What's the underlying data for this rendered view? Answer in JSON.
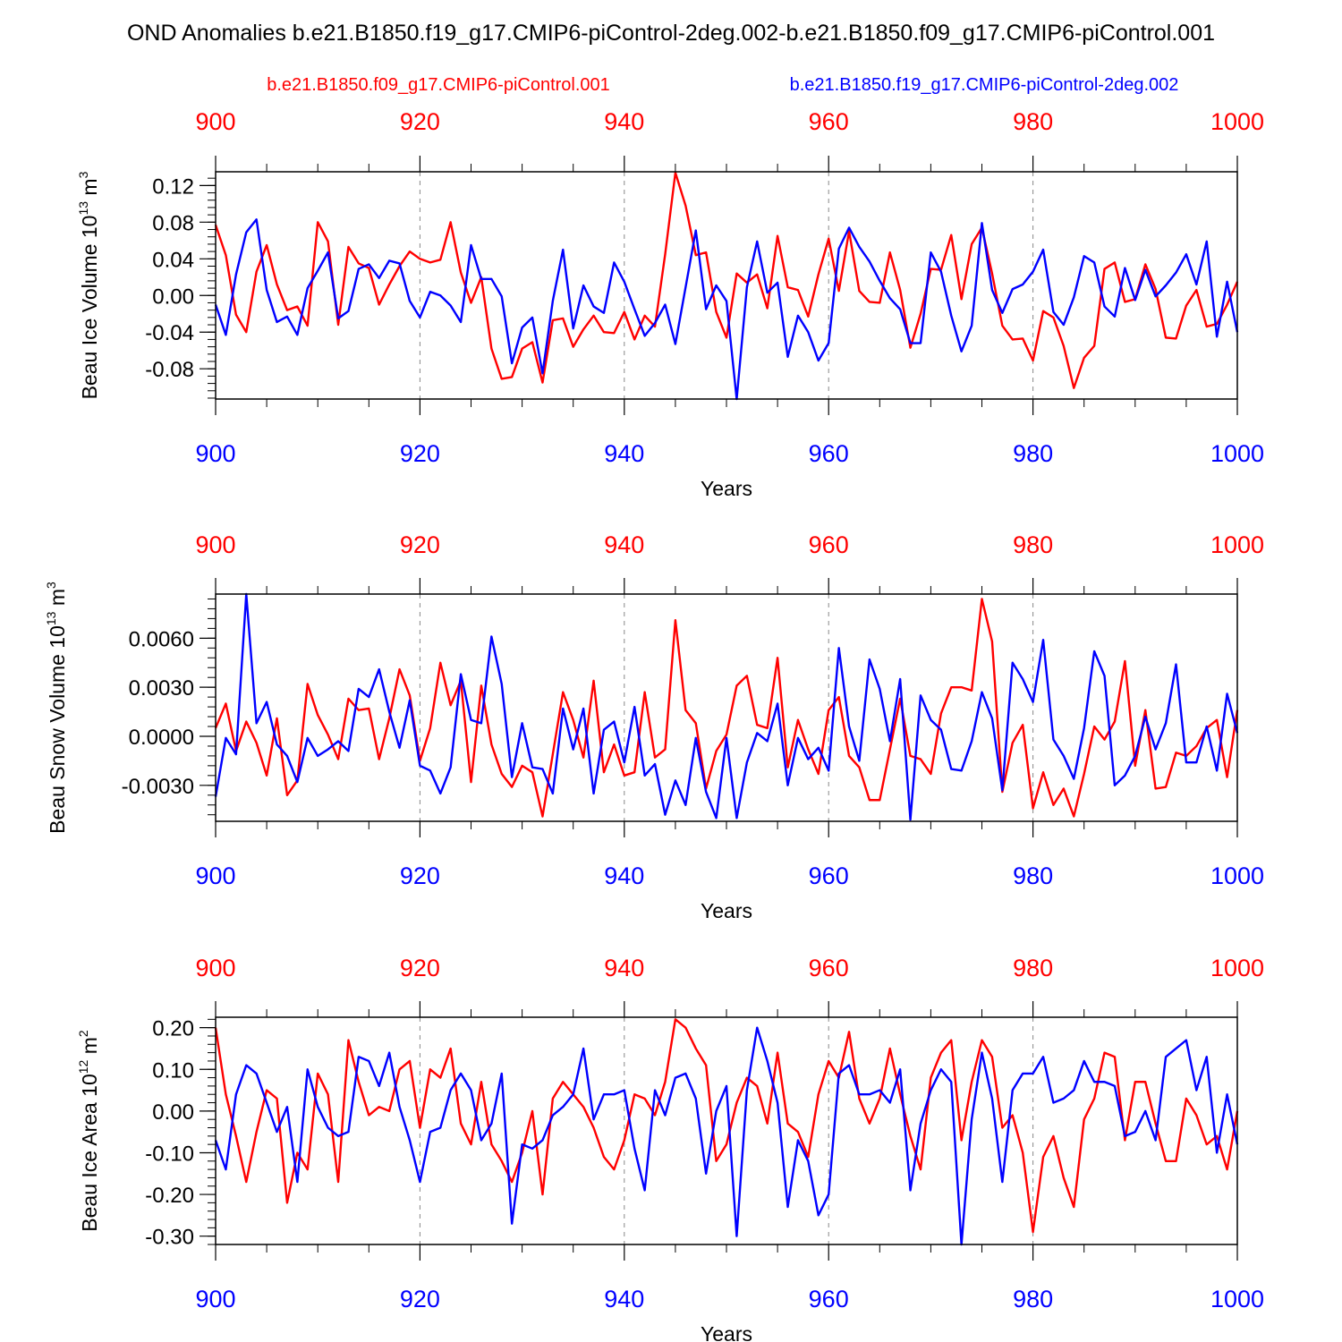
{
  "title": "OND Anomalies b.e21.B1850.f19_g17.CMIP6-piControl-2deg.002-b.e21.B1850.f09_g17.CMIP6-piControl.001",
  "legend": [
    {
      "label": "b.e21.B1850.f09_g17.CMIP6-piControl.001",
      "color": "#ff0000"
    },
    {
      "label": "b.e21.B1850.f19_g17.CMIP6-piControl-2deg.002",
      "color": "#0000ff"
    }
  ],
  "colors": {
    "red": "#ff0000",
    "blue": "#0000ff",
    "axis": "#000000",
    "grid": "#888888"
  },
  "chart_data": [
    {
      "type": "line",
      "ylabel": "Beau Ice Volume 10",
      "ylabel_exp": "13",
      "ylabel_unit": " m",
      "ylabel_unit_exp": "3",
      "xlabel": "Years",
      "xlim": [
        900,
        1000
      ],
      "ylim": [
        -0.113,
        0.135
      ],
      "yticks": [
        -0.08,
        -0.04,
        0.0,
        0.04,
        0.08,
        0.12
      ],
      "ytick_labels": [
        "-0.08",
        "-0.04",
        "0.00",
        "0.04",
        "0.08",
        "0.12"
      ],
      "yminor_step": 0.008,
      "xticks": [
        900,
        920,
        940,
        960,
        980,
        1000
      ],
      "xtick_labels": [
        "900",
        "920",
        "940",
        "960",
        "980",
        "1000"
      ],
      "grid_x": [
        920,
        940,
        960,
        980
      ],
      "series": [
        {
          "name": "b.e21.B1850.f09_g17.CMIP6-piControl.001",
          "color": "#ff0000",
          "values": [
            0.077,
            0.044,
            -0.021,
            -0.04,
            0.026,
            0.055,
            0.012,
            -0.016,
            -0.012,
            -0.033,
            0.08,
            0.059,
            -0.032,
            0.053,
            0.035,
            0.03,
            -0.01,
            0.012,
            0.032,
            0.048,
            0.04,
            0.036,
            0.039,
            0.08,
            0.025,
            -0.008,
            0.02,
            -0.058,
            -0.091,
            -0.089,
            -0.058,
            -0.051,
            -0.095,
            -0.027,
            -0.025,
            -0.056,
            -0.037,
            -0.022,
            -0.04,
            -0.041,
            -0.018,
            -0.048,
            -0.022,
            -0.034,
            0.045,
            0.134,
            0.098,
            0.044,
            0.047,
            -0.018,
            -0.046,
            0.024,
            0.014,
            0.023,
            -0.014,
            0.065,
            0.009,
            0.006,
            -0.023,
            0.023,
            0.062,
            0.005,
            0.07,
            0.005,
            -0.007,
            -0.008,
            0.047,
            0.006,
            -0.057,
            -0.02,
            0.029,
            0.028,
            0.066,
            -0.004,
            0.056,
            0.074,
            0.024,
            -0.033,
            -0.048,
            -0.047,
            -0.071,
            -0.017,
            -0.024,
            -0.055,
            -0.101,
            -0.068,
            -0.055,
            0.029,
            0.036,
            -0.007,
            -0.004,
            0.034,
            0.007,
            -0.046,
            -0.047,
            -0.011,
            0.006,
            -0.034,
            -0.031,
            -0.01,
            0.015
          ]
        },
        {
          "name": "b.e21.B1850.f19_g17.CMIP6-piControl-2deg.002",
          "color": "#0000ff",
          "values": [
            -0.01,
            -0.043,
            0.023,
            0.069,
            0.083,
            0.006,
            -0.029,
            -0.023,
            -0.043,
            0.008,
            0.027,
            0.047,
            -0.025,
            -0.017,
            0.029,
            0.034,
            0.019,
            0.038,
            0.035,
            -0.006,
            -0.024,
            0.004,
            0.0,
            -0.011,
            -0.029,
            0.055,
            0.018,
            0.018,
            -0.001,
            -0.074,
            -0.035,
            -0.024,
            -0.085,
            -0.006,
            0.05,
            -0.036,
            0.011,
            -0.012,
            -0.019,
            0.036,
            0.015,
            -0.015,
            -0.044,
            -0.03,
            -0.01,
            -0.053,
            0.009,
            0.071,
            -0.015,
            0.011,
            -0.006,
            -0.113,
            0.009,
            0.059,
            0.003,
            0.014,
            -0.067,
            -0.022,
            -0.04,
            -0.071,
            -0.052,
            0.051,
            0.074,
            0.053,
            0.037,
            0.016,
            -0.003,
            -0.015,
            -0.052,
            -0.052,
            0.047,
            0.026,
            -0.022,
            -0.061,
            -0.033,
            0.079,
            0.006,
            -0.019,
            0.007,
            0.012,
            0.026,
            0.05,
            -0.018,
            -0.032,
            -0.002,
            0.043,
            0.036,
            -0.012,
            -0.023,
            0.03,
            -0.005,
            0.028,
            -0.001,
            0.011,
            0.025,
            0.045,
            0.012,
            0.059,
            -0.045,
            0.015,
            -0.04
          ]
        }
      ]
    },
    {
      "type": "line",
      "ylabel": "Beau Snow Volume 10",
      "ylabel_exp": "13",
      "ylabel_unit": " m",
      "ylabel_unit_exp": "3",
      "xlabel": "Years",
      "xlim": [
        900,
        1000
      ],
      "ylim": [
        -0.0052,
        0.0087
      ],
      "yticks": [
        -0.003,
        0.0,
        0.003,
        0.006
      ],
      "ytick_labels": [
        "-0.0030",
        "0.0000",
        "0.0030",
        "0.0060"
      ],
      "yminor_step": 0.0006,
      "xticks": [
        900,
        920,
        940,
        960,
        980,
        1000
      ],
      "xtick_labels": [
        "900",
        "920",
        "940",
        "960",
        "980",
        "1000"
      ],
      "grid_x": [
        920,
        940,
        960,
        980
      ],
      "series": [
        {
          "name": "b.e21.B1850.f09_g17.CMIP6-piControl.001",
          "color": "#ff0000",
          "values": [
            0.0005,
            0.002,
            -0.0009,
            0.0009,
            -0.0004,
            -0.0024,
            0.0011,
            -0.0036,
            -0.0027,
            0.0032,
            0.0013,
            0.0001,
            -0.0014,
            0.0023,
            0.0016,
            0.0017,
            -0.0014,
            0.0011,
            0.0041,
            0.0025,
            -0.0015,
            0.0005,
            0.0045,
            0.0019,
            0.0034,
            -0.0028,
            0.0031,
            -0.0005,
            -0.0023,
            -0.0031,
            -0.0018,
            -0.0022,
            -0.0049,
            -0.0011,
            0.0027,
            0.001,
            -0.0013,
            0.0034,
            -0.0022,
            -0.0005,
            -0.0024,
            -0.0022,
            0.0027,
            -0.0013,
            -0.0008,
            0.0071,
            0.0016,
            0.0008,
            -0.0032,
            -0.0009,
            0.0001,
            0.0031,
            0.0037,
            0.0007,
            0.0005,
            0.0048,
            -0.0019,
            0.001,
            -0.0008,
            -0.0023,
            0.0016,
            0.0024,
            -0.0012,
            -0.0019,
            -0.0039,
            -0.0039,
            -0.0008,
            0.0023,
            -0.0012,
            -0.0014,
            -0.0023,
            0.0014,
            0.003,
            0.003,
            0.0028,
            0.0084,
            0.0058,
            -0.0034,
            -0.0004,
            0.0007,
            -0.0044,
            -0.0022,
            -0.0042,
            -0.0032,
            -0.0049,
            -0.0023,
            0.0006,
            -0.0002,
            0.0009,
            0.0046,
            -0.0018,
            0.0016,
            -0.0032,
            -0.0031,
            -0.001,
            -0.0012,
            -0.0006,
            0.0005,
            0.001,
            -0.0025,
            0.0016
          ]
        },
        {
          "name": "b.e21.B1850.f19_g17.CMIP6-piControl-2deg.002",
          "color": "#0000ff",
          "values": [
            -0.0037,
            -0.0001,
            -0.0011,
            0.0087,
            0.0008,
            0.0021,
            -0.0005,
            -0.0012,
            -0.0028,
            -0.0001,
            -0.0012,
            -0.0008,
            -0.0003,
            -0.0009,
            0.0029,
            0.0024,
            0.0041,
            0.0015,
            -0.0007,
            0.0022,
            -0.0018,
            -0.0021,
            -0.0035,
            -0.0019,
            0.0038,
            0.001,
            0.0008,
            0.0061,
            0.0032,
            -0.0025,
            0.0008,
            -0.0019,
            -0.002,
            -0.0035,
            0.0017,
            -0.0008,
            0.0017,
            -0.0035,
            0.0004,
            0.0009,
            -0.0016,
            0.0018,
            -0.0024,
            -0.0017,
            -0.0048,
            -0.0027,
            -0.0042,
            -0.0001,
            -0.0034,
            -0.005,
            -0.0001,
            -0.005,
            -0.0016,
            0.0002,
            -0.0003,
            0.002,
            -0.003,
            -0.0001,
            -0.0014,
            -0.0007,
            -0.0021,
            0.0054,
            0.0006,
            -0.0015,
            0.0047,
            0.0029,
            -0.0003,
            0.0035,
            -0.0051,
            0.0025,
            0.001,
            0.0004,
            -0.002,
            -0.0021,
            -0.0003,
            0.0027,
            0.0011,
            -0.0033,
            0.0045,
            0.0035,
            0.0021,
            0.0059,
            -0.0002,
            -0.0012,
            -0.0026,
            0.0005,
            0.0052,
            0.0037,
            -0.003,
            -0.0024,
            -0.0012,
            0.0012,
            -0.0008,
            0.0008,
            0.0044,
            -0.0016,
            -0.0016,
            0.0006,
            -0.0021,
            0.0026,
            0.0002
          ]
        }
      ]
    },
    {
      "type": "line",
      "ylabel": "Beau Ice Area 10",
      "ylabel_exp": "12",
      "ylabel_unit": " m",
      "ylabel_unit_exp": "2",
      "xlabel": "Years",
      "xlim": [
        900,
        1000
      ],
      "ylim": [
        -0.32,
        0.225
      ],
      "yticks": [
        -0.3,
        -0.2,
        -0.1,
        0.0,
        0.1,
        0.2
      ],
      "ytick_labels": [
        "-0.30",
        "-0.20",
        "-0.10",
        "0.00",
        "0.10",
        "0.20"
      ],
      "yminor_step": 0.02,
      "xticks": [
        900,
        920,
        940,
        960,
        980,
        1000
      ],
      "xtick_labels": [
        "900",
        "920",
        "940",
        "960",
        "980",
        "1000"
      ],
      "grid_x": [
        920,
        940,
        960,
        980
      ],
      "series": [
        {
          "name": "b.e21.B1850.f09_g17.CMIP6-piControl.001",
          "color": "#ff0000",
          "values": [
            0.2,
            0.04,
            -0.06,
            -0.17,
            -0.05,
            0.05,
            0.03,
            -0.22,
            -0.1,
            -0.14,
            0.09,
            0.04,
            -0.17,
            0.17,
            0.07,
            -0.01,
            0.01,
            0.0,
            0.1,
            0.12,
            -0.04,
            0.1,
            0.08,
            0.15,
            -0.03,
            -0.08,
            0.07,
            -0.08,
            -0.12,
            -0.17,
            -0.1,
            0.0,
            -0.2,
            0.03,
            0.07,
            0.04,
            0.01,
            -0.04,
            -0.11,
            -0.14,
            -0.07,
            0.04,
            0.03,
            -0.01,
            0.07,
            0.22,
            0.2,
            0.15,
            0.11,
            -0.12,
            -0.08,
            0.02,
            0.08,
            0.06,
            -0.03,
            0.14,
            -0.03,
            -0.05,
            -0.11,
            0.04,
            0.12,
            0.08,
            0.19,
            0.03,
            -0.03,
            0.03,
            0.15,
            0.04,
            -0.06,
            -0.14,
            0.08,
            0.14,
            0.17,
            -0.07,
            0.07,
            0.17,
            0.13,
            -0.04,
            -0.01,
            -0.1,
            -0.29,
            -0.11,
            -0.06,
            -0.16,
            -0.23,
            -0.02,
            0.03,
            0.14,
            0.13,
            -0.07,
            0.07,
            0.07,
            -0.03,
            -0.12,
            -0.12,
            0.03,
            -0.01,
            -0.08,
            -0.06,
            -0.14,
            0.0
          ]
        },
        {
          "name": "b.e21.B1850.f19_g17.CMIP6-piControl-2deg.002",
          "color": "#0000ff",
          "values": [
            -0.07,
            -0.14,
            0.04,
            0.11,
            0.09,
            0.02,
            -0.05,
            0.01,
            -0.17,
            0.1,
            0.01,
            -0.04,
            -0.06,
            -0.05,
            0.13,
            0.12,
            0.06,
            0.14,
            0.01,
            -0.07,
            -0.17,
            -0.05,
            -0.04,
            0.05,
            0.09,
            0.05,
            -0.07,
            -0.03,
            0.09,
            -0.27,
            -0.08,
            -0.09,
            -0.07,
            -0.01,
            0.01,
            0.04,
            0.15,
            -0.02,
            0.04,
            0.04,
            0.05,
            -0.09,
            -0.19,
            0.05,
            -0.01,
            0.08,
            0.09,
            0.03,
            -0.15,
            0.0,
            0.06,
            -0.3,
            0.05,
            0.2,
            0.12,
            0.02,
            -0.23,
            -0.07,
            -0.12,
            -0.25,
            -0.2,
            0.09,
            0.11,
            0.04,
            0.04,
            0.05,
            0.02,
            0.1,
            -0.19,
            -0.03,
            0.05,
            0.1,
            0.07,
            -0.32,
            -0.02,
            0.14,
            0.03,
            -0.17,
            0.05,
            0.09,
            0.09,
            0.13,
            0.02,
            0.03,
            0.05,
            0.12,
            0.07,
            0.07,
            0.06,
            -0.06,
            -0.05,
            0.0,
            -0.07,
            0.13,
            0.15,
            0.17,
            0.05,
            0.13,
            -0.1,
            0.04,
            -0.08
          ]
        }
      ]
    }
  ]
}
